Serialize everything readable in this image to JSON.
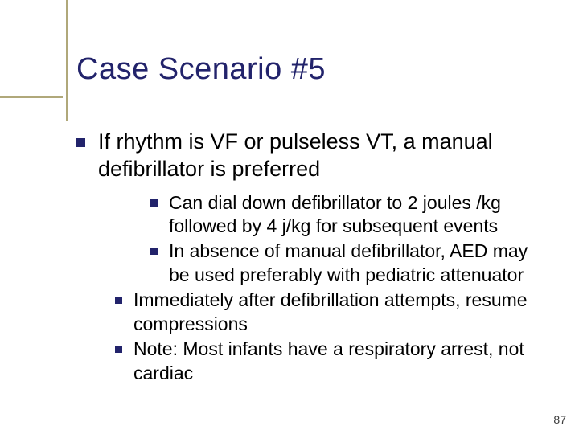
{
  "slide": {
    "title": "Case Scenario #5",
    "page_number": "87",
    "accent_color": "#b0a87a",
    "title_color": "#22236b",
    "bullet_color": "#22236b",
    "text_color": "#000000",
    "background_color": "#ffffff",
    "title_fontsize": 38,
    "lvl1_fontsize": 27,
    "lvl2_fontsize": 23,
    "lvl3_fontsize": 23
  },
  "content": {
    "lvl1_text": "If rhythm is VF or pulseless VT, a manual defibrillator is preferred",
    "lvl3_a": "Can dial down defibrillator to 2 joules /kg followed by 4 j/kg for subsequent events",
    "lvl3_b": "In absence of manual defibrillator, AED may be used preferably with pediatric attenuator",
    "lvl2_a": "Immediately after defibrillation attempts, resume compressions",
    "lvl2_b": "Note: Most infants have a respiratory arrest, not cardiac"
  }
}
